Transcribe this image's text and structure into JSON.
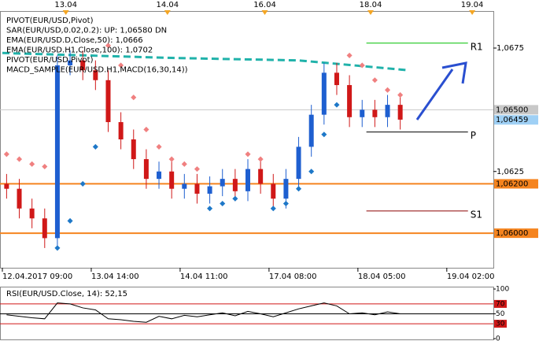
{
  "chart_data": {
    "type": "candlestick",
    "legend": [
      {
        "text": "PIVOT(EUR/USD,Pivot)",
        "color": "#000000"
      },
      {
        "text": "SAR(EUR/USD,0.02,0.2): UP: 1,06580 DN",
        "color": "#f08080"
      },
      {
        "text": "EMA(EUR/USD.D,Close,50): 1,0666",
        "color": "#20b2aa"
      },
      {
        "text": "EMA(EUR/USD.H1,Close,100): 1,0702",
        "color": "#404040"
      },
      {
        "text": "PIVOT(EUR/USD,Pivot)",
        "color": "#000000"
      },
      {
        "text": "MACD_SAMPLE(EUR/USD.H1,MACD(16,30,14))",
        "color": "#404040"
      }
    ],
    "xlim": [
      0,
      116
    ],
    "ylim": [
      1.0586,
      1.069
    ],
    "xticks": [
      {
        "value": 0,
        "label": "12.04.2017 09:00"
      },
      {
        "value": 21,
        "label": "13.04 14:00"
      },
      {
        "value": 42,
        "label": "14.04 11:00"
      },
      {
        "value": 63,
        "label": "17.04 08:00"
      },
      {
        "value": 84,
        "label": "18.04 05:00"
      },
      {
        "value": 105,
        "label": "19.04 02:00"
      }
    ],
    "top_ticks": [
      {
        "value": 15,
        "label": "13.04"
      },
      {
        "value": 39,
        "label": "14.04"
      },
      {
        "value": 62,
        "label": "16.04"
      },
      {
        "value": 87,
        "label": "18.04"
      },
      {
        "value": 111,
        "label": "19.04"
      }
    ],
    "yticks": [
      {
        "value": 1.0675,
        "label": "1,0675"
      },
      {
        "value": 1.0625,
        "label": "1,0625"
      }
    ],
    "price_markers": [
      {
        "value": 1.065,
        "label": "1,06500",
        "color": "#c8c8c8",
        "line": true
      },
      {
        "value": 1.06459,
        "label": "1,06459",
        "color": "#9fd0f5",
        "line": false
      },
      {
        "value": 1.062,
        "label": "1,06200",
        "color": "#f5841f",
        "line": true
      },
      {
        "value": 1.06,
        "label": "1,06000",
        "color": "#f5841f",
        "line": true
      }
    ],
    "up_color": "#1e5fd0",
    "down_color": "#d01818",
    "x": [
      1,
      4,
      7,
      10,
      13,
      16,
      19,
      22,
      25,
      28,
      31,
      34,
      37,
      40,
      43,
      46,
      49,
      52,
      55,
      58,
      61,
      64,
      67,
      70,
      73,
      76,
      79,
      82,
      85,
      88,
      91,
      94
    ],
    "open": [
      1.062,
      1.0618,
      1.061,
      1.0606,
      1.0598,
      1.0668,
      1.067,
      1.0666,
      1.0662,
      1.0645,
      1.0638,
      1.063,
      1.0622,
      1.0625,
      1.0618,
      1.062,
      1.0616,
      1.0619,
      1.0622,
      1.0617,
      1.0626,
      1.062,
      1.0614,
      1.0622,
      1.0635,
      1.0648,
      1.0665,
      1.066,
      1.0647,
      1.065,
      1.0647,
      1.0652
    ],
    "high": [
      1.0624,
      1.0622,
      1.0614,
      1.061,
      1.0672,
      1.0674,
      1.0674,
      1.067,
      1.0666,
      1.0649,
      1.0642,
      1.0634,
      1.0629,
      1.0629,
      1.0624,
      1.0624,
      1.0623,
      1.0626,
      1.0626,
      1.063,
      1.063,
      1.0624,
      1.0626,
      1.0639,
      1.0652,
      1.0669,
      1.0669,
      1.0664,
      1.0654,
      1.0654,
      1.0656,
      1.0656
    ],
    "low": [
      1.0614,
      1.0606,
      1.0602,
      1.0594,
      1.0594,
      1.0664,
      1.0662,
      1.0658,
      1.0641,
      1.0634,
      1.0626,
      1.0618,
      1.0618,
      1.0614,
      1.0614,
      1.0612,
      1.0612,
      1.0615,
      1.0613,
      1.0613,
      1.0616,
      1.061,
      1.061,
      1.0618,
      1.0631,
      1.0644,
      1.0656,
      1.0643,
      1.0643,
      1.0643,
      1.0643,
      1.0642
    ],
    "close": [
      1.0618,
      1.061,
      1.0606,
      1.0598,
      1.0668,
      1.067,
      1.0666,
      1.0662,
      1.0645,
      1.0638,
      1.063,
      1.0622,
      1.0625,
      1.0618,
      1.062,
      1.0616,
      1.0619,
      1.0622,
      1.0617,
      1.0626,
      1.062,
      1.0614,
      1.0622,
      1.0635,
      1.0648,
      1.0665,
      1.066,
      1.0647,
      1.065,
      1.0647,
      1.0652,
      1.0646
    ],
    "sar": [
      1.0632,
      1.063,
      1.0628,
      1.0627,
      1.0594,
      1.0605,
      1.062,
      1.0635,
      1.0676,
      1.0668,
      1.0655,
      1.0642,
      1.0635,
      1.063,
      1.0628,
      1.0626,
      1.061,
      1.0612,
      1.0614,
      1.0632,
      1.063,
      1.061,
      1.0612,
      1.0618,
      1.0625,
      1.064,
      1.0652,
      1.0672,
      1.0668,
      1.0662,
      1.0658,
      1.0656
    ],
    "sar_above_color": "#f08080",
    "sar_below_color": "#1e78c8",
    "ema": {
      "color": "#20b2aa",
      "x": [
        0,
        40,
        70,
        96
      ],
      "values": [
        1.0673,
        1.0671,
        1.067,
        1.0666
      ]
    },
    "pivot_span": [
      86,
      110
    ],
    "pivots": [
      {
        "name": "R1",
        "value": 1.0677,
        "color": "#00c000"
      },
      {
        "name": "P",
        "value": 1.0641,
        "color": "#000000"
      },
      {
        "name": "S1",
        "value": 1.0609,
        "color": "#8b0000"
      }
    ],
    "rsi": {
      "title": "RSI(EUR/USD.Close, 14): 52,15",
      "ylim": [
        0,
        100
      ],
      "yticks": [
        100,
        70,
        50,
        30,
        0
      ],
      "levels": [
        {
          "value": 70,
          "color": "#d01818"
        },
        {
          "value": 50,
          "color": "#000000"
        },
        {
          "value": 30,
          "color": "#d01818"
        }
      ],
      "values": [
        48,
        45,
        42,
        40,
        72,
        70,
        62,
        58,
        40,
        38,
        35,
        33,
        45,
        40,
        47,
        44,
        48,
        52,
        46,
        55,
        50,
        44,
        52,
        60,
        66,
        72,
        66,
        50,
        52,
        48,
        54,
        50
      ]
    }
  }
}
